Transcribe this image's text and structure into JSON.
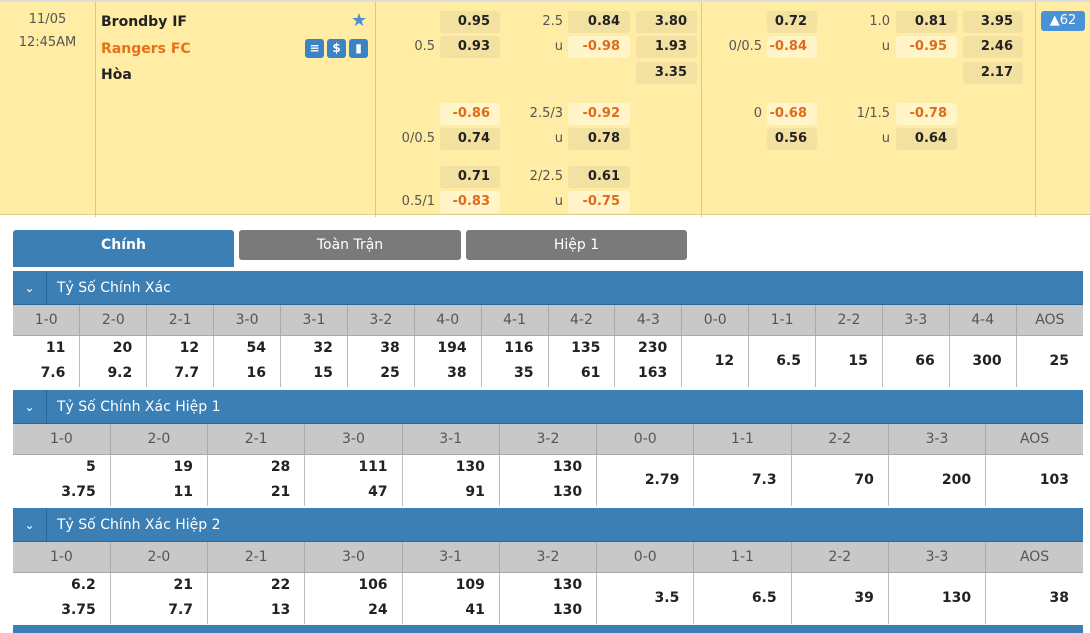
{
  "match": {
    "date": "11/05",
    "time": "12:45AM",
    "home": "Brondby IF",
    "away": "Rangers FC",
    "draw": "Hòa",
    "count_badge": "▲62",
    "icons": [
      "s-icon",
      "dollar-icon",
      "stats-icon"
    ]
  },
  "colors": {
    "accent": "#3b7fb5",
    "negative": "#e06b1c",
    "away_team": "#e8701a",
    "background": "#ffeda6"
  },
  "odds_full": [
    {
      "hl": "",
      "h": "0.95",
      "ol": "2.5",
      "o": "0.84",
      "x": "3.80"
    },
    {
      "hl": "0.5",
      "h": "0.93",
      "ol": "u",
      "o": "-0.98",
      "x": "1.93"
    },
    {
      "hl": "",
      "h": "",
      "ol": "",
      "o": "",
      "x": "3.35"
    },
    {
      "hl": "",
      "h": "-0.86",
      "ol": "2.5/3",
      "o": "-0.92",
      "x": ""
    },
    {
      "hl": "0/0.5",
      "h": "0.74",
      "ol": "u",
      "o": "0.78",
      "x": ""
    },
    {
      "hl": "",
      "h": "0.71",
      "ol": "2/2.5",
      "o": "0.61",
      "x": ""
    },
    {
      "hl": "0.5/1",
      "h": "-0.83",
      "ol": "u",
      "o": "-0.75",
      "x": ""
    }
  ],
  "odds_half": [
    {
      "hl": "",
      "h": "0.72",
      "ol": "1.0",
      "o": "0.81",
      "x": "3.95"
    },
    {
      "hl": "0/0.5",
      "h": "-0.84",
      "ol": "u",
      "o": "-0.95",
      "x": "2.46"
    },
    {
      "hl": "",
      "h": "",
      "ol": "",
      "o": "",
      "x": "2.17"
    },
    {
      "hl": "0",
      "h": "-0.68",
      "ol": "1/1.5",
      "o": "-0.78",
      "x": ""
    },
    {
      "hl": "",
      "h": "0.56",
      "ol": "u",
      "o": "0.64",
      "x": ""
    },
    {
      "hl": "",
      "h": "",
      "ol": "",
      "o": "",
      "x": ""
    },
    {
      "hl": "",
      "h": "",
      "ol": "",
      "o": "",
      "x": ""
    }
  ],
  "tabs": [
    {
      "label": "Chính",
      "active": true
    },
    {
      "label": "Toàn Trận"
    },
    {
      "label": "Hiệp 1"
    }
  ],
  "sections": [
    {
      "title": "Tỷ Số Chính Xác",
      "cols": [
        "1-0",
        "2-0",
        "2-1",
        "3-0",
        "3-1",
        "3-2",
        "4-0",
        "4-1",
        "4-2",
        "4-3",
        "0-0",
        "1-1",
        "2-2",
        "3-3",
        "4-4",
        "AOS"
      ],
      "values": [
        [
          "11",
          "7.6"
        ],
        [
          "20",
          "9.2"
        ],
        [
          "12",
          "7.7"
        ],
        [
          "54",
          "16"
        ],
        [
          "32",
          "15"
        ],
        [
          "38",
          "25"
        ],
        [
          "194",
          "38"
        ],
        [
          "116",
          "35"
        ],
        [
          "135",
          "61"
        ],
        [
          "230",
          "163"
        ],
        [
          "12"
        ],
        [
          "6.5"
        ],
        [
          "15"
        ],
        [
          "66"
        ],
        [
          "300"
        ],
        [
          "25"
        ]
      ]
    },
    {
      "title": "Tỷ Số Chính Xác Hiệp 1",
      "cols": [
        "1-0",
        "2-0",
        "2-1",
        "3-0",
        "3-1",
        "3-2",
        "0-0",
        "1-1",
        "2-2",
        "3-3",
        "AOS"
      ],
      "values": [
        [
          "5",
          "3.75"
        ],
        [
          "19",
          "11"
        ],
        [
          "28",
          "21"
        ],
        [
          "111",
          "47"
        ],
        [
          "130",
          "91"
        ],
        [
          "130",
          "130"
        ],
        [
          "2.79"
        ],
        [
          "7.3"
        ],
        [
          "70"
        ],
        [
          "200"
        ],
        [
          "103"
        ]
      ]
    },
    {
      "title": "Tỷ Số Chính Xác Hiệp 2",
      "cols": [
        "1-0",
        "2-0",
        "2-1",
        "3-0",
        "3-1",
        "3-2",
        "0-0",
        "1-1",
        "2-2",
        "3-3",
        "AOS"
      ],
      "values": [
        [
          "6.2",
          "3.75"
        ],
        [
          "21",
          "7.7"
        ],
        [
          "22",
          "13"
        ],
        [
          "106",
          "24"
        ],
        [
          "109",
          "41"
        ],
        [
          "130",
          "130"
        ],
        [
          "3.5"
        ],
        [
          "6.5"
        ],
        [
          "39"
        ],
        [
          "130"
        ],
        [
          "38"
        ]
      ]
    }
  ]
}
